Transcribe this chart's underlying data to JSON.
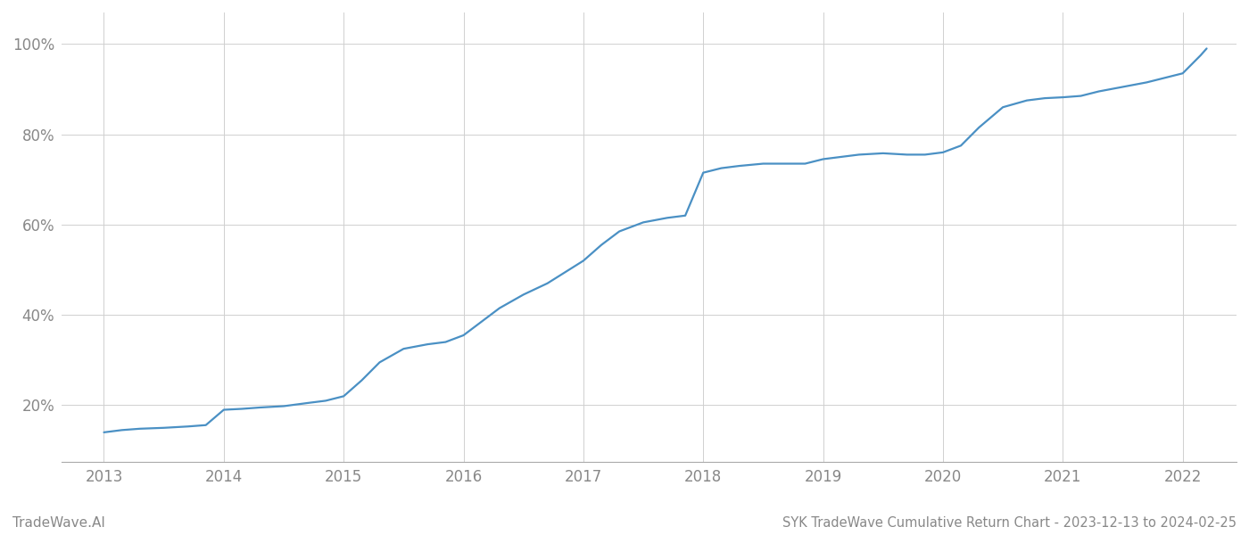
{
  "title": "SYK TradeWave Cumulative Return Chart - 2023-12-13 to 2024-02-25",
  "watermark": "TradeWave.AI",
  "line_color": "#4a90c4",
  "background_color": "#ffffff",
  "grid_color": "#d0d0d0",
  "x_years": [
    2013,
    2014,
    2015,
    2016,
    2017,
    2018,
    2019,
    2020,
    2021,
    2022
  ],
  "data_x": [
    2013.0,
    2013.15,
    2013.3,
    2013.5,
    2013.7,
    2013.85,
    2014.0,
    2014.15,
    2014.3,
    2014.5,
    2014.7,
    2014.85,
    2015.0,
    2015.15,
    2015.3,
    2015.5,
    2015.7,
    2015.85,
    2016.0,
    2016.15,
    2016.3,
    2016.5,
    2016.7,
    2016.85,
    2017.0,
    2017.15,
    2017.3,
    2017.5,
    2017.7,
    2017.85,
    2018.0,
    2018.15,
    2018.3,
    2018.5,
    2018.7,
    2018.85,
    2019.0,
    2019.15,
    2019.3,
    2019.5,
    2019.7,
    2019.85,
    2020.0,
    2020.15,
    2020.3,
    2020.5,
    2020.7,
    2020.85,
    2021.0,
    2021.15,
    2021.3,
    2021.5,
    2021.7,
    2021.85,
    2022.0,
    2022.15,
    2022.2
  ],
  "data_y": [
    0.14,
    0.145,
    0.148,
    0.15,
    0.153,
    0.156,
    0.19,
    0.192,
    0.195,
    0.198,
    0.205,
    0.21,
    0.22,
    0.255,
    0.295,
    0.325,
    0.335,
    0.34,
    0.355,
    0.385,
    0.415,
    0.445,
    0.47,
    0.495,
    0.52,
    0.555,
    0.585,
    0.605,
    0.615,
    0.62,
    0.715,
    0.725,
    0.73,
    0.735,
    0.735,
    0.735,
    0.745,
    0.75,
    0.755,
    0.758,
    0.755,
    0.755,
    0.76,
    0.775,
    0.815,
    0.86,
    0.875,
    0.88,
    0.882,
    0.885,
    0.895,
    0.905,
    0.915,
    0.925,
    0.935,
    0.975,
    0.99
  ],
  "yticks": [
    0.2,
    0.4,
    0.6,
    0.8,
    1.0
  ],
  "ytick_labels": [
    "20%",
    "40%",
    "60%",
    "80%",
    "100%"
  ],
  "xlim": [
    2012.65,
    2022.45
  ],
  "ylim": [
    0.075,
    1.07
  ],
  "title_fontsize": 10.5,
  "watermark_fontsize": 11,
  "tick_fontsize": 12,
  "tick_color": "#888888",
  "spine_color": "#aaaaaa",
  "line_width": 1.6
}
